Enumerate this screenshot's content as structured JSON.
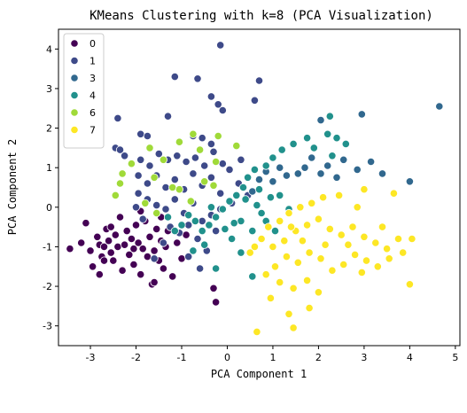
{
  "chart_data": {
    "type": "scatter",
    "title": "KMeans Clustering with k=8 (PCA Visualization)",
    "xlabel": "PCA Component 1",
    "ylabel": "PCA Component 2",
    "xlim": [
      -3.7,
      5.1
    ],
    "ylim": [
      -3.5,
      4.5
    ],
    "xticks": [
      "-3",
      "-2",
      "-1",
      "0",
      "1",
      "2",
      "3",
      "4",
      "5"
    ],
    "yticks": [
      "-3",
      "-2",
      "-1",
      "0",
      "1",
      "2",
      "3",
      "4"
    ],
    "xtick_values": [
      -3,
      -2,
      -1,
      0,
      1,
      2,
      3,
      4,
      5
    ],
    "ytick_values": [
      -3,
      -2,
      -1,
      0,
      1,
      2,
      3,
      4
    ],
    "grid": false,
    "legend_position": "top-left",
    "series": [
      {
        "name": "0",
        "color": "#440154",
        "points": [
          [
            -3.45,
            -1.05
          ],
          [
            -3.2,
            -0.9
          ],
          [
            -3.1,
            -0.4
          ],
          [
            -3.0,
            -1.1
          ],
          [
            -2.95,
            -1.5
          ],
          [
            -2.85,
            -0.75
          ],
          [
            -2.8,
            -0.95
          ],
          [
            -2.75,
            -1.25
          ],
          [
            -2.7,
            -1.0
          ],
          [
            -2.65,
            -0.55
          ],
          [
            -2.6,
            -0.85
          ],
          [
            -2.55,
            -1.15
          ],
          [
            -2.5,
            -1.35
          ],
          [
            -2.45,
            -0.7
          ],
          [
            -2.4,
            -1.0
          ],
          [
            -2.35,
            -0.25
          ],
          [
            -2.3,
            -1.6
          ],
          [
            -2.25,
            -0.95
          ],
          [
            -2.2,
            -0.6
          ],
          [
            -2.15,
            -1.2
          ],
          [
            -2.1,
            -0.8
          ],
          [
            -2.05,
            -1.45
          ],
          [
            -2.0,
            -0.45
          ],
          [
            -1.95,
            -0.9
          ],
          [
            -1.9,
            -1.7
          ],
          [
            -1.85,
            -1.05
          ],
          [
            -1.8,
            -0.35
          ],
          [
            -1.75,
            -1.25
          ],
          [
            -1.7,
            -0.75
          ],
          [
            -1.65,
            -1.95
          ],
          [
            -1.6,
            -1.1
          ],
          [
            -1.55,
            -0.55
          ],
          [
            -1.5,
            -1.35
          ],
          [
            -1.45,
            -0.85
          ],
          [
            -1.4,
            -1.55
          ],
          [
            -1.35,
            -1.0
          ],
          [
            -1.3,
            -0.6
          ],
          [
            -1.2,
            -1.75
          ],
          [
            -1.1,
            -0.9
          ],
          [
            -1.0,
            -1.3
          ],
          [
            -0.9,
            -0.7
          ],
          [
            -2.8,
            -1.7
          ],
          [
            -2.05,
            -1.05
          ],
          [
            -1.9,
            -0.1
          ],
          [
            -2.55,
            -0.5
          ],
          [
            -1.6,
            -1.9
          ],
          [
            -0.3,
            -2.05
          ],
          [
            -0.25,
            -2.4
          ],
          [
            -2.7,
            -1.35
          ],
          [
            -1.45,
            -0.25
          ]
        ]
      },
      {
        "name": "1",
        "color": "#3e4a89",
        "points": [
          [
            -0.15,
            4.1
          ],
          [
            -1.15,
            3.3
          ],
          [
            -0.65,
            3.25
          ],
          [
            0.7,
            3.2
          ],
          [
            -0.35,
            2.8
          ],
          [
            0.6,
            2.7
          ],
          [
            -0.2,
            2.6
          ],
          [
            -0.1,
            2.45
          ],
          [
            -1.3,
            2.3
          ],
          [
            -2.4,
            2.25
          ],
          [
            -1.9,
            1.85
          ],
          [
            -1.75,
            1.8
          ],
          [
            -0.75,
            1.8
          ],
          [
            -0.55,
            1.75
          ],
          [
            -0.35,
            1.6
          ],
          [
            -2.45,
            1.5
          ],
          [
            -2.35,
            1.45
          ],
          [
            -2.25,
            1.3
          ],
          [
            -1.9,
            1.2
          ],
          [
            -1.7,
            1.05
          ],
          [
            -1.5,
            1.35
          ],
          [
            -1.3,
            1.2
          ],
          [
            -1.1,
            1.3
          ],
          [
            -0.9,
            1.15
          ],
          [
            -0.7,
            1.25
          ],
          [
            -0.5,
            1.05
          ],
          [
            -0.3,
            1.4
          ],
          [
            -0.1,
            1.1
          ],
          [
            -1.95,
            0.8
          ],
          [
            -1.75,
            0.6
          ],
          [
            -1.55,
            0.8
          ],
          [
            -1.35,
            0.5
          ],
          [
            -1.15,
            0.7
          ],
          [
            -0.95,
            0.45
          ],
          [
            -0.75,
            0.85
          ],
          [
            -0.55,
            0.55
          ],
          [
            -0.35,
            0.75
          ],
          [
            -0.15,
            0.35
          ],
          [
            -1.95,
            0.35
          ],
          [
            -1.75,
            0.2
          ],
          [
            -1.55,
            0.05
          ],
          [
            -1.35,
            -0.05
          ],
          [
            -1.15,
            0.2
          ],
          [
            -0.95,
            -0.15
          ],
          [
            -0.75,
            0.1
          ],
          [
            -0.55,
            -0.35
          ],
          [
            -0.35,
            -0.2
          ],
          [
            -0.15,
            -0.05
          ],
          [
            -2.0,
            0.0
          ],
          [
            -1.85,
            -0.3
          ],
          [
            -1.25,
            -0.5
          ],
          [
            -1.05,
            -0.65
          ],
          [
            -0.85,
            -0.45
          ],
          [
            -0.65,
            -0.8
          ],
          [
            -0.45,
            -1.1
          ],
          [
            -0.25,
            -0.6
          ],
          [
            0.05,
            0.95
          ],
          [
            0.25,
            0.6
          ],
          [
            0.3,
            1.2
          ],
          [
            0.1,
            0.1
          ],
          [
            -1.4,
            -0.9
          ],
          [
            -1.6,
            -1.3
          ],
          [
            -0.85,
            -1.25
          ],
          [
            -0.6,
            -1.55
          ],
          [
            0.45,
            0.3
          ]
        ]
      },
      {
        "name": "3",
        "color": "#31688e",
        "points": [
          [
            4.65,
            2.55
          ],
          [
            2.95,
            2.35
          ],
          [
            2.05,
            2.2
          ],
          [
            4.0,
            0.65
          ],
          [
            3.4,
            0.85
          ],
          [
            3.15,
            1.15
          ],
          [
            2.85,
            0.95
          ],
          [
            2.55,
            1.2
          ],
          [
            2.4,
            0.75
          ],
          [
            2.2,
            1.05
          ],
          [
            2.05,
            0.85
          ],
          [
            1.85,
            1.25
          ],
          [
            1.7,
            1.0
          ],
          [
            1.55,
            0.85
          ],
          [
            1.3,
            0.8
          ],
          [
            1.15,
            1.0
          ],
          [
            1.0,
            0.65
          ],
          [
            0.85,
            0.9
          ],
          [
            0.7,
            0.7
          ],
          [
            0.55,
            0.4
          ]
        ]
      },
      {
        "name": "4",
        "color": "#21918c",
        "points": [
          [
            2.25,
            2.3
          ],
          [
            2.2,
            1.85
          ],
          [
            1.9,
            1.5
          ],
          [
            2.4,
            1.75
          ],
          [
            2.6,
            1.6
          ],
          [
            2.3,
            1.3
          ],
          [
            1.75,
            1.75
          ],
          [
            1.45,
            1.6
          ],
          [
            1.2,
            1.45
          ],
          [
            1.0,
            1.25
          ],
          [
            0.85,
            1.05
          ],
          [
            0.6,
            0.95
          ],
          [
            0.45,
            0.75
          ],
          [
            0.35,
            0.5
          ],
          [
            0.2,
            0.3
          ],
          [
            0.05,
            0.15
          ],
          [
            -0.1,
            -0.05
          ],
          [
            -0.25,
            -0.25
          ],
          [
            -0.4,
            -0.45
          ],
          [
            -0.55,
            -0.6
          ],
          [
            -0.7,
            -0.35
          ],
          [
            -0.85,
            -0.2
          ],
          [
            -1.0,
            -0.45
          ],
          [
            -1.15,
            -0.6
          ],
          [
            -1.3,
            -0.25
          ],
          [
            0.3,
            -0.35
          ],
          [
            0.55,
            -0.6
          ],
          [
            0.75,
            -0.15
          ],
          [
            0.95,
            0.25
          ],
          [
            1.15,
            0.3
          ],
          [
            1.35,
            -0.05
          ],
          [
            0.4,
            0.2
          ],
          [
            0.65,
            0.05
          ],
          [
            -0.35,
            0.0
          ],
          [
            0.15,
            -0.4
          ],
          [
            0.55,
            -1.75
          ],
          [
            -0.25,
            -1.55
          ],
          [
            0.3,
            -1.15
          ],
          [
            0.1,
            -0.8
          ],
          [
            -0.05,
            -0.55
          ],
          [
            0.85,
            -0.35
          ],
          [
            1.05,
            -0.6
          ],
          [
            -0.5,
            -0.95
          ],
          [
            -0.75,
            -1.1
          ],
          [
            0.7,
            0.45
          ]
        ]
      },
      {
        "name": "6",
        "color": "#a0da39",
        "points": [
          [
            -0.75,
            1.85
          ],
          [
            -0.2,
            1.8
          ],
          [
            -1.05,
            1.65
          ],
          [
            0.2,
            1.55
          ],
          [
            -1.7,
            1.5
          ],
          [
            -0.6,
            1.45
          ],
          [
            -1.4,
            1.2
          ],
          [
            -2.1,
            1.1
          ],
          [
            -0.25,
            1.15
          ],
          [
            -2.3,
            0.85
          ],
          [
            -1.6,
            0.75
          ],
          [
            -0.5,
            0.65
          ],
          [
            -2.35,
            0.6
          ],
          [
            -1.2,
            0.5
          ],
          [
            -1.05,
            0.45
          ],
          [
            -0.8,
            0.15
          ],
          [
            -1.8,
            0.1
          ],
          [
            -2.45,
            0.3
          ],
          [
            -0.3,
            0.55
          ],
          [
            -1.55,
            -0.15
          ]
        ]
      },
      {
        "name": "7",
        "color": "#fde725",
        "points": [
          [
            3.65,
            0.35
          ],
          [
            3.0,
            0.45
          ],
          [
            2.45,
            0.3
          ],
          [
            2.1,
            0.25
          ],
          [
            1.85,
            0.1
          ],
          [
            1.6,
            0.0
          ],
          [
            1.35,
            -0.15
          ],
          [
            1.15,
            -0.35
          ],
          [
            0.9,
            -0.5
          ],
          [
            0.75,
            -0.8
          ],
          [
            0.6,
            -1.0
          ],
          [
            0.5,
            -1.15
          ],
          [
            1.0,
            -1.0
          ],
          [
            1.25,
            -0.85
          ],
          [
            1.5,
            -0.6
          ],
          [
            1.75,
            -0.45
          ],
          [
            2.0,
            -0.3
          ],
          [
            2.25,
            -0.55
          ],
          [
            2.5,
            -0.7
          ],
          [
            2.75,
            -0.5
          ],
          [
            3.0,
            -0.75
          ],
          [
            3.25,
            -0.9
          ],
          [
            3.5,
            -1.05
          ],
          [
            3.75,
            -0.8
          ],
          [
            3.55,
            -1.3
          ],
          [
            3.3,
            -1.5
          ],
          [
            3.05,
            -1.35
          ],
          [
            2.8,
            -1.2
          ],
          [
            2.55,
            -1.45
          ],
          [
            2.3,
            -1.6
          ],
          [
            2.05,
            -1.3
          ],
          [
            1.8,
            -1.15
          ],
          [
            1.55,
            -1.4
          ],
          [
            1.3,
            -1.25
          ],
          [
            1.05,
            -1.5
          ],
          [
            0.85,
            -1.7
          ],
          [
            1.15,
            -1.9
          ],
          [
            1.45,
            -2.05
          ],
          [
            1.75,
            -1.85
          ],
          [
            2.0,
            -2.15
          ],
          [
            1.8,
            -2.55
          ],
          [
            1.35,
            -2.7
          ],
          [
            1.45,
            -3.05
          ],
          [
            0.95,
            -2.3
          ],
          [
            0.65,
            -3.15
          ],
          [
            4.0,
            -1.95
          ],
          [
            4.05,
            -0.8
          ],
          [
            3.85,
            -1.15
          ],
          [
            2.95,
            -1.65
          ],
          [
            2.65,
            -0.95
          ],
          [
            2.15,
            -0.95
          ],
          [
            1.65,
            -0.85
          ],
          [
            1.4,
            -0.5
          ],
          [
            2.85,
            0.0
          ],
          [
            3.4,
            -0.5
          ]
        ]
      }
    ]
  }
}
